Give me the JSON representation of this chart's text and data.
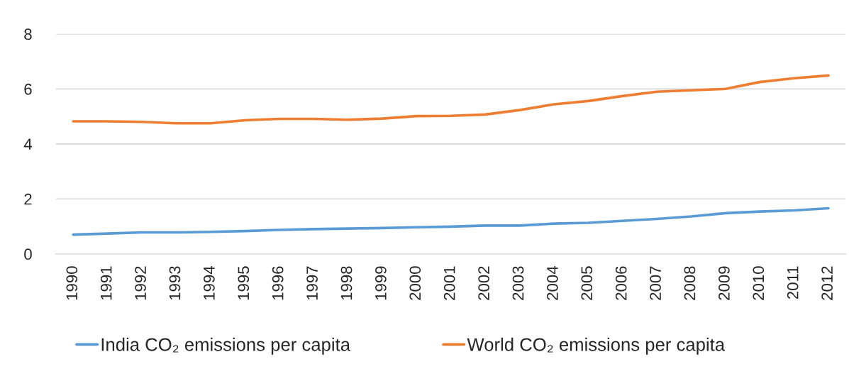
{
  "chart_data": {
    "type": "line",
    "categories": [
      "1990",
      "1991",
      "1992",
      "1993",
      "1994",
      "1995",
      "1996",
      "1997",
      "1998",
      "1999",
      "2000",
      "2001",
      "2002",
      "2003",
      "2004",
      "2005",
      "2006",
      "2007",
      "2008",
      "2009",
      "2010",
      "2011",
      "2012"
    ],
    "series": [
      {
        "name": "India CO₂ emissions per capita",
        "color": "#5b9bd5",
        "values": [
          0.7,
          0.74,
          0.78,
          0.78,
          0.8,
          0.83,
          0.87,
          0.9,
          0.92,
          0.94,
          0.97,
          0.99,
          1.03,
          1.03,
          1.1,
          1.13,
          1.2,
          1.27,
          1.36,
          1.48,
          1.54,
          1.58,
          1.66
        ]
      },
      {
        "name": "World CO₂ emissions per capita",
        "color": "#ed7d31",
        "values": [
          4.82,
          4.82,
          4.8,
          4.75,
          4.75,
          4.86,
          4.91,
          4.91,
          4.88,
          4.92,
          5.01,
          5.02,
          5.07,
          5.23,
          5.44,
          5.56,
          5.74,
          5.9,
          5.95,
          6.0,
          6.25,
          6.39,
          6.49
        ]
      }
    ],
    "ylim": [
      0,
      8
    ],
    "yticks": [
      0,
      2,
      4,
      6,
      8
    ],
    "grid": "y",
    "legend": "bottom",
    "line_style": "solid"
  }
}
